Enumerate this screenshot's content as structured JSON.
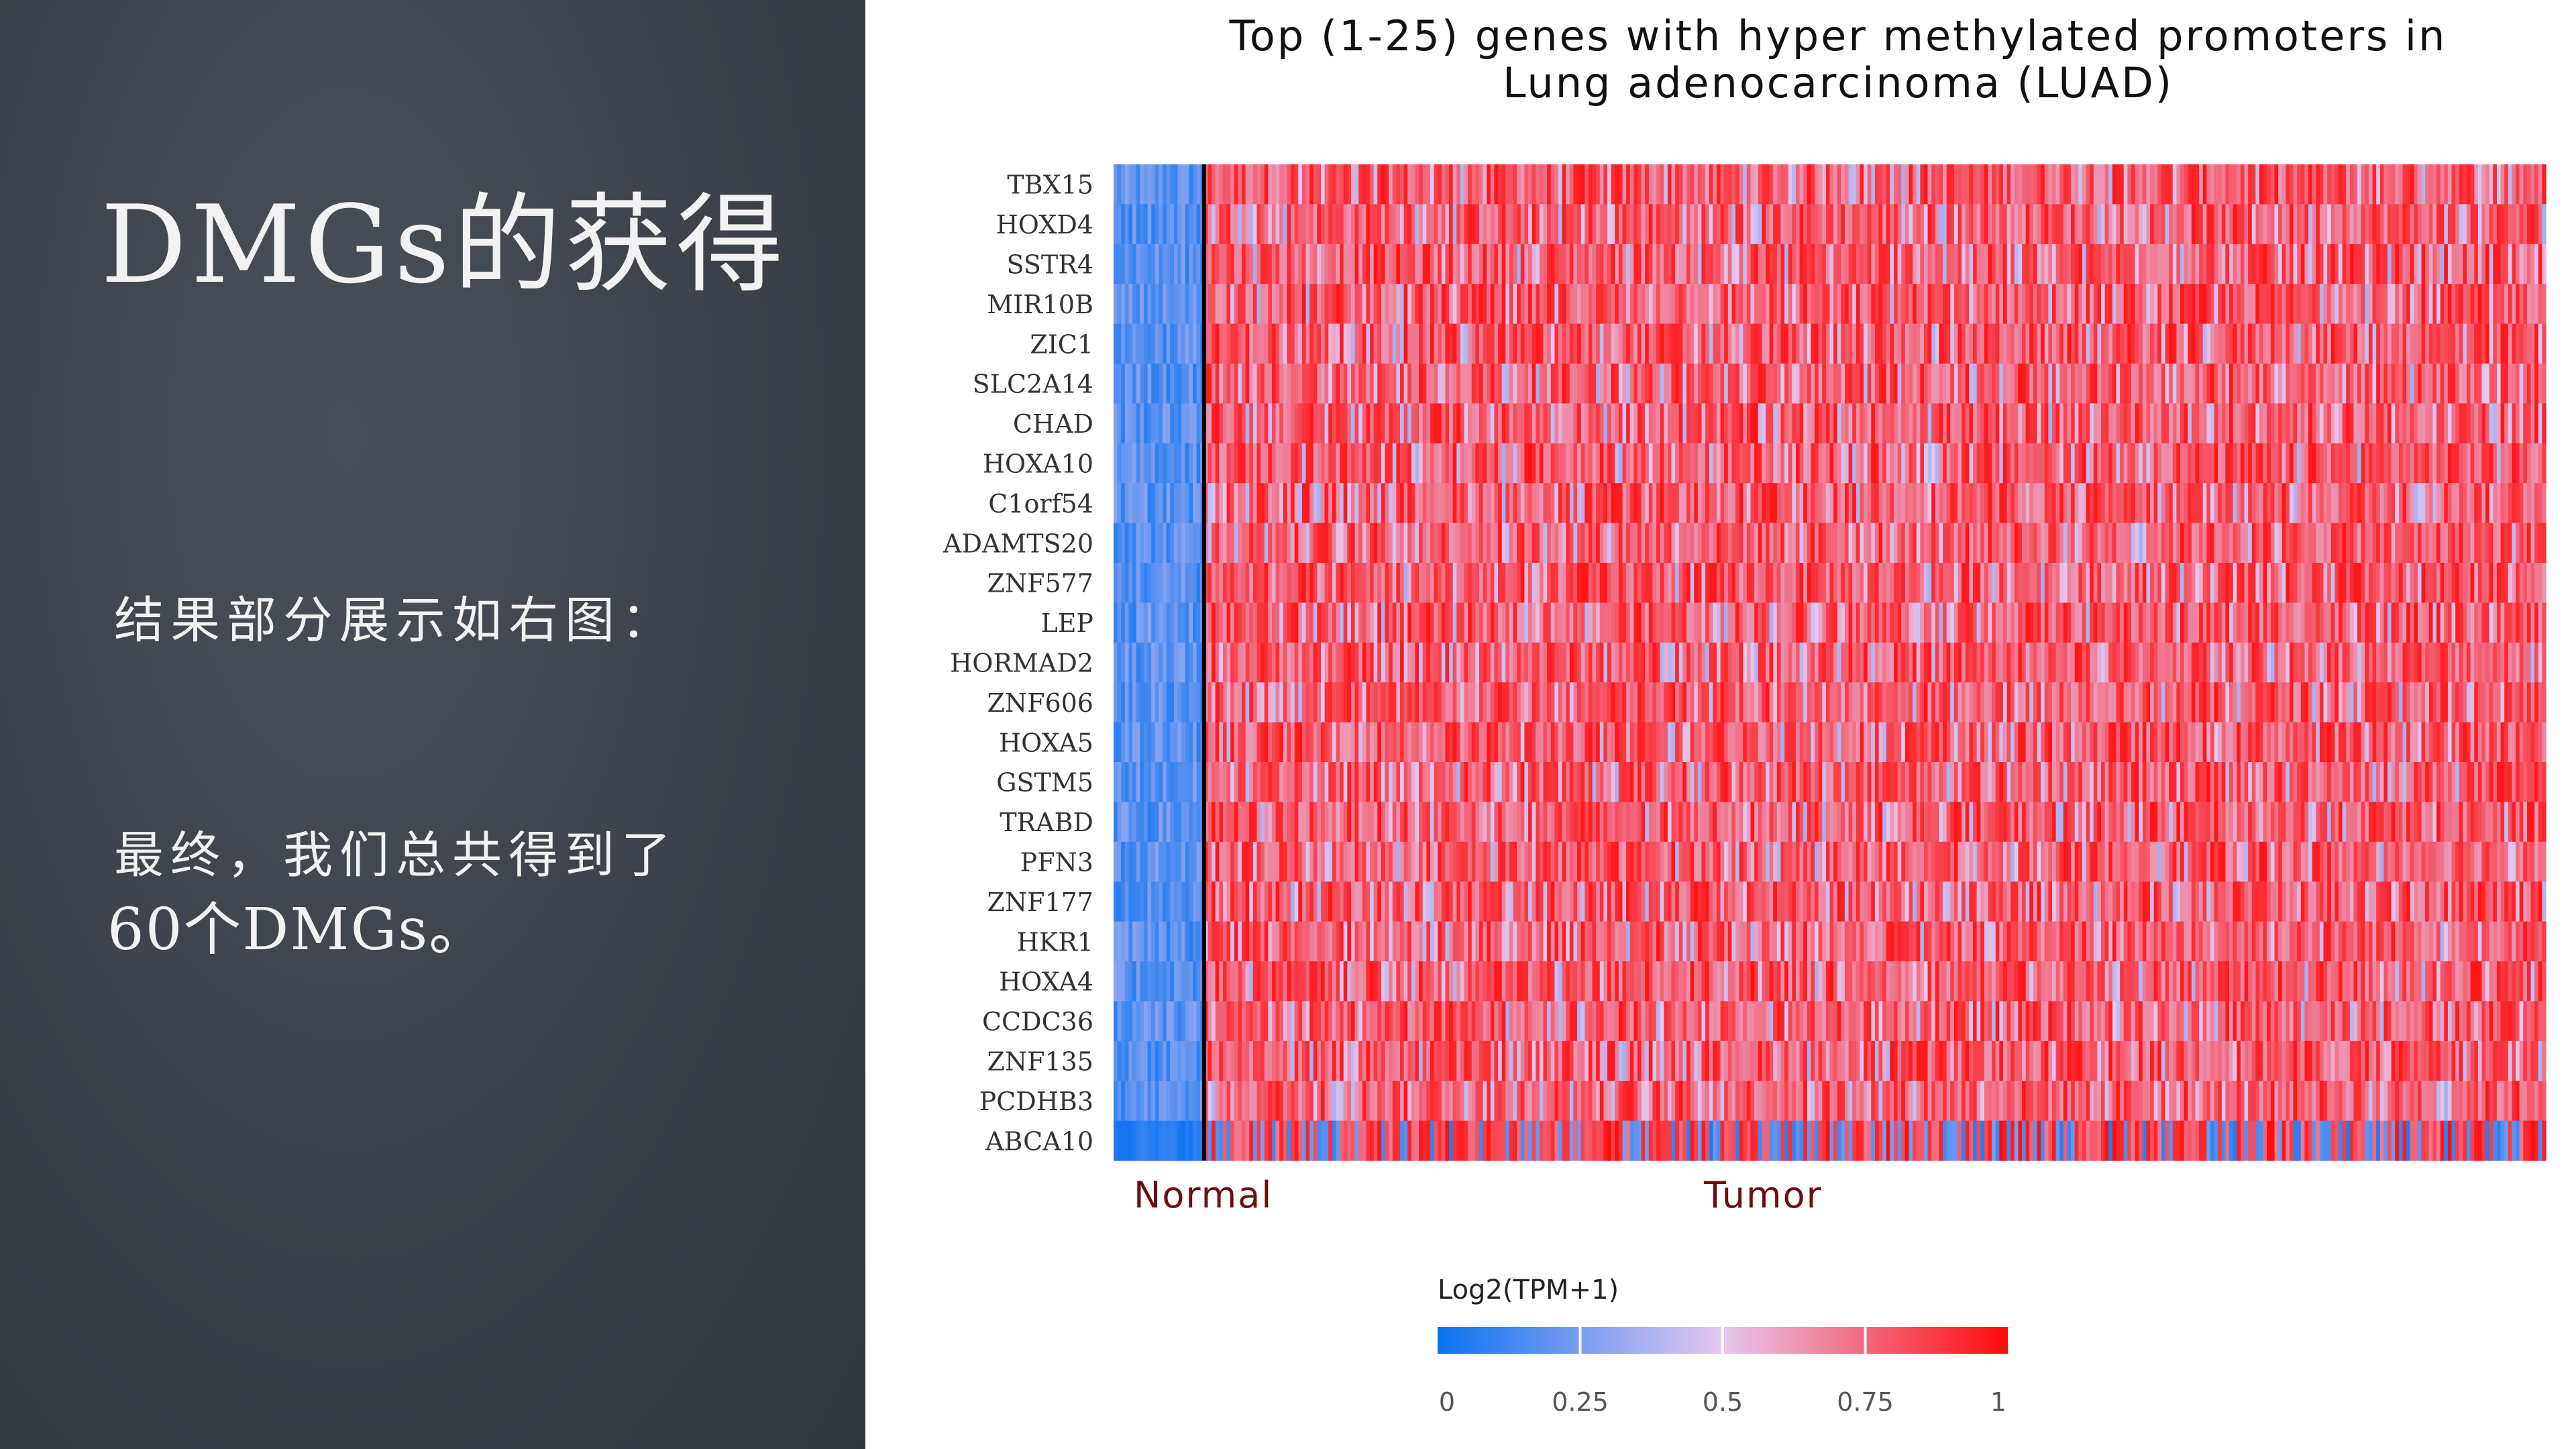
{
  "slide": {
    "title": "DMGs的获得",
    "paragraph1": "结果部分展示如右图：",
    "paragraph2_line1": "最终，我们总共得到了",
    "paragraph2_line2": "60个DMGs。"
  },
  "chart_data": {
    "type": "heatmap",
    "title_line1": "Top (1-25) genes with hyper methylated promoters in",
    "title_line2": "Lung adenocarcinoma (LUAD)",
    "genes": [
      "TBX15",
      "HOXD4",
      "SSTR4",
      "MIR10B",
      "ZIC1",
      "SLC2A14",
      "CHAD",
      "HOXA10",
      "C1orf54",
      "ADAMTS20",
      "ZNF577",
      "LEP",
      "HORMAD2",
      "ZNF606",
      "HOXA5",
      "GSTM5",
      "TRABD",
      "PFN3",
      "ZNF177",
      "HKR1",
      "HOXA4",
      "CCDC36",
      "ZNF135",
      "PCDHB3",
      "ABCA10"
    ],
    "groups": [
      {
        "name": "Normal",
        "fraction": 0.062
      },
      {
        "name": "Tumor",
        "fraction": 0.938
      }
    ],
    "legend": {
      "title": "Log2(TPM+1)",
      "ticks": [
        "0",
        "0.25",
        "0.5",
        "0.75",
        "1"
      ],
      "colors": [
        "#0a72f0",
        "#e6c8f0",
        "#ff0a0a"
      ]
    },
    "typical_values": {
      "normal": 0.18,
      "tumor": 0.8,
      "abca10_normal": 0.02
    }
  }
}
